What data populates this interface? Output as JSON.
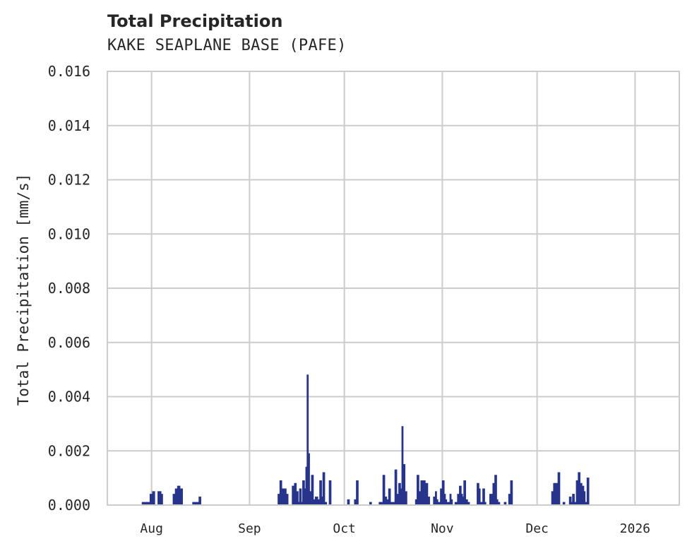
{
  "chart_data": {
    "type": "area",
    "title": "Total Precipitation",
    "subtitle": "KAKE SEAPLANE BASE (PAFE)",
    "xlabel": "",
    "ylabel": "Total Precipitation [mm/s]",
    "ylim": [
      0.0,
      0.016
    ],
    "yticks": [
      "0.000",
      "0.002",
      "0.004",
      "0.006",
      "0.008",
      "0.010",
      "0.012",
      "0.014",
      "0.016"
    ],
    "xticks": [
      "Aug",
      "Sep",
      "Oct",
      "Nov",
      "Dec",
      "2026"
    ],
    "grid": true,
    "legend": "none",
    "color": "#27348b",
    "x_unit": "days since Jul 18, 2025",
    "x_range_days": [
      0,
      181
    ],
    "series": [
      {
        "name": "Total Precipitation",
        "points": [
          [
            11.0,
            0.0001
          ],
          [
            12.5,
            0.0001
          ],
          [
            13.5,
            0.0004
          ],
          [
            14.3,
            0.0005
          ],
          [
            15.0,
            0.0
          ],
          [
            16.0,
            0.0005
          ],
          [
            17.0,
            0.0004
          ],
          [
            17.5,
            0.0
          ],
          [
            20.8,
            0.0004
          ],
          [
            21.5,
            0.0006
          ],
          [
            22.2,
            0.0007
          ],
          [
            23.0,
            0.0006
          ],
          [
            23.8,
            0.0
          ],
          [
            27.0,
            0.0001
          ],
          [
            28.5,
            0.0001
          ],
          [
            29.0,
            0.0003
          ],
          [
            29.6,
            0.0
          ],
          [
            54.0,
            0.0004
          ],
          [
            54.6,
            0.0009
          ],
          [
            55.2,
            0.0006
          ],
          [
            55.8,
            0.0
          ],
          [
            56.0,
            0.0006
          ],
          [
            56.6,
            0.0004
          ],
          [
            57.2,
            0.0
          ],
          [
            58.5,
            0.0007
          ],
          [
            59.2,
            0.0008
          ],
          [
            59.8,
            0.0005
          ],
          [
            60.4,
            0.0001
          ],
          [
            60.8,
            0.0006
          ],
          [
            61.4,
            0.0001
          ],
          [
            61.8,
            0.0009
          ],
          [
            62.4,
            0.0006
          ],
          [
            62.8,
            0.0014
          ],
          [
            63.2,
            0.0048
          ],
          [
            63.6,
            0.0019
          ],
          [
            64.0,
            0.0005
          ],
          [
            64.6,
            0.0011
          ],
          [
            65.2,
            0.0002
          ],
          [
            65.8,
            0.0003
          ],
          [
            66.6,
            0.0002
          ],
          [
            67.2,
            0.0009
          ],
          [
            67.8,
            0.0003
          ],
          [
            68.2,
            0.0012
          ],
          [
            68.8,
            0.0001
          ],
          [
            69.4,
            0.0
          ],
          [
            70.2,
            0.0009
          ],
          [
            70.8,
            0.0
          ],
          [
            76.0,
            0.0002
          ],
          [
            76.6,
            0.0
          ],
          [
            78.2,
            0.0002
          ],
          [
            78.8,
            0.0009
          ],
          [
            79.4,
            0.0
          ],
          [
            83.0,
            0.0001
          ],
          [
            83.6,
            0.0
          ],
          [
            86.0,
            0.0001
          ],
          [
            86.8,
            0.0001
          ],
          [
            87.2,
            0.0011
          ],
          [
            87.8,
            0.0003
          ],
          [
            88.4,
            0.0002
          ],
          [
            89.0,
            0.0006
          ],
          [
            89.6,
            0.0001
          ],
          [
            91.0,
            0.0013
          ],
          [
            91.6,
            0.0004
          ],
          [
            92.2,
            0.0008
          ],
          [
            92.8,
            0.0006
          ],
          [
            93.2,
            0.0029
          ],
          [
            93.6,
            0.0015
          ],
          [
            94.2,
            0.0005
          ],
          [
            94.8,
            0.0
          ],
          [
            97.5,
            0.0002
          ],
          [
            98.0,
            0.0011
          ],
          [
            98.6,
            0.0005
          ],
          [
            99.2,
            0.0009
          ],
          [
            100.6,
            0.0008
          ],
          [
            101.4,
            0.0003
          ],
          [
            102.0,
            0.0
          ],
          [
            103.2,
            0.0003
          ],
          [
            103.8,
            0.0005
          ],
          [
            104.2,
            0.0002
          ],
          [
            104.6,
            0.0001
          ],
          [
            105.4,
            0.0006
          ],
          [
            106.0,
            0.0009
          ],
          [
            106.6,
            0.0004
          ],
          [
            107.0,
            0.0002
          ],
          [
            107.4,
            0.0001
          ],
          [
            108.4,
            0.0004
          ],
          [
            108.8,
            0.0002
          ],
          [
            109.2,
            0.0
          ],
          [
            110.0,
            0.0001
          ],
          [
            110.8,
            0.0004
          ],
          [
            111.4,
            0.0007
          ],
          [
            112.0,
            0.0004
          ],
          [
            112.4,
            0.0003
          ],
          [
            112.8,
            0.0009
          ],
          [
            113.4,
            0.0002
          ],
          [
            114.0,
            0.0001
          ],
          [
            114.6,
            0.0
          ],
          [
            117.0,
            0.0008
          ],
          [
            117.6,
            0.0006
          ],
          [
            118.0,
            0.0001
          ],
          [
            118.8,
            0.0006
          ],
          [
            119.4,
            0.0001
          ],
          [
            119.8,
            0.0
          ],
          [
            121.0,
            0.0004
          ],
          [
            122.0,
            0.0008
          ],
          [
            122.6,
            0.0011
          ],
          [
            123.2,
            0.0002
          ],
          [
            123.6,
            0.0001
          ],
          [
            124.2,
            0.0
          ],
          [
            125.6,
            0.0001
          ],
          [
            126.2,
            0.0
          ],
          [
            127.0,
            0.0004
          ],
          [
            127.6,
            0.0009
          ],
          [
            128.2,
            0.0
          ],
          [
            140.6,
            0.0005
          ],
          [
            141.2,
            0.0008
          ],
          [
            142.0,
            0.0008
          ],
          [
            142.6,
            0.0012
          ],
          [
            143.2,
            0.0
          ],
          [
            144.2,
            0.0001
          ],
          [
            144.8,
            0.0
          ],
          [
            146.2,
            0.0003
          ],
          [
            146.8,
            0.0001
          ],
          [
            147.2,
            0.0004
          ],
          [
            147.8,
            0.0001
          ],
          [
            148.4,
            0.0009
          ],
          [
            149.0,
            0.0012
          ],
          [
            149.6,
            0.0008
          ],
          [
            150.2,
            0.0007
          ],
          [
            150.8,
            0.0005
          ],
          [
            151.2,
            0.0001
          ],
          [
            151.8,
            0.001
          ],
          [
            152.4,
            0.0
          ],
          [
            181.0,
            0.0
          ]
        ]
      }
    ]
  }
}
